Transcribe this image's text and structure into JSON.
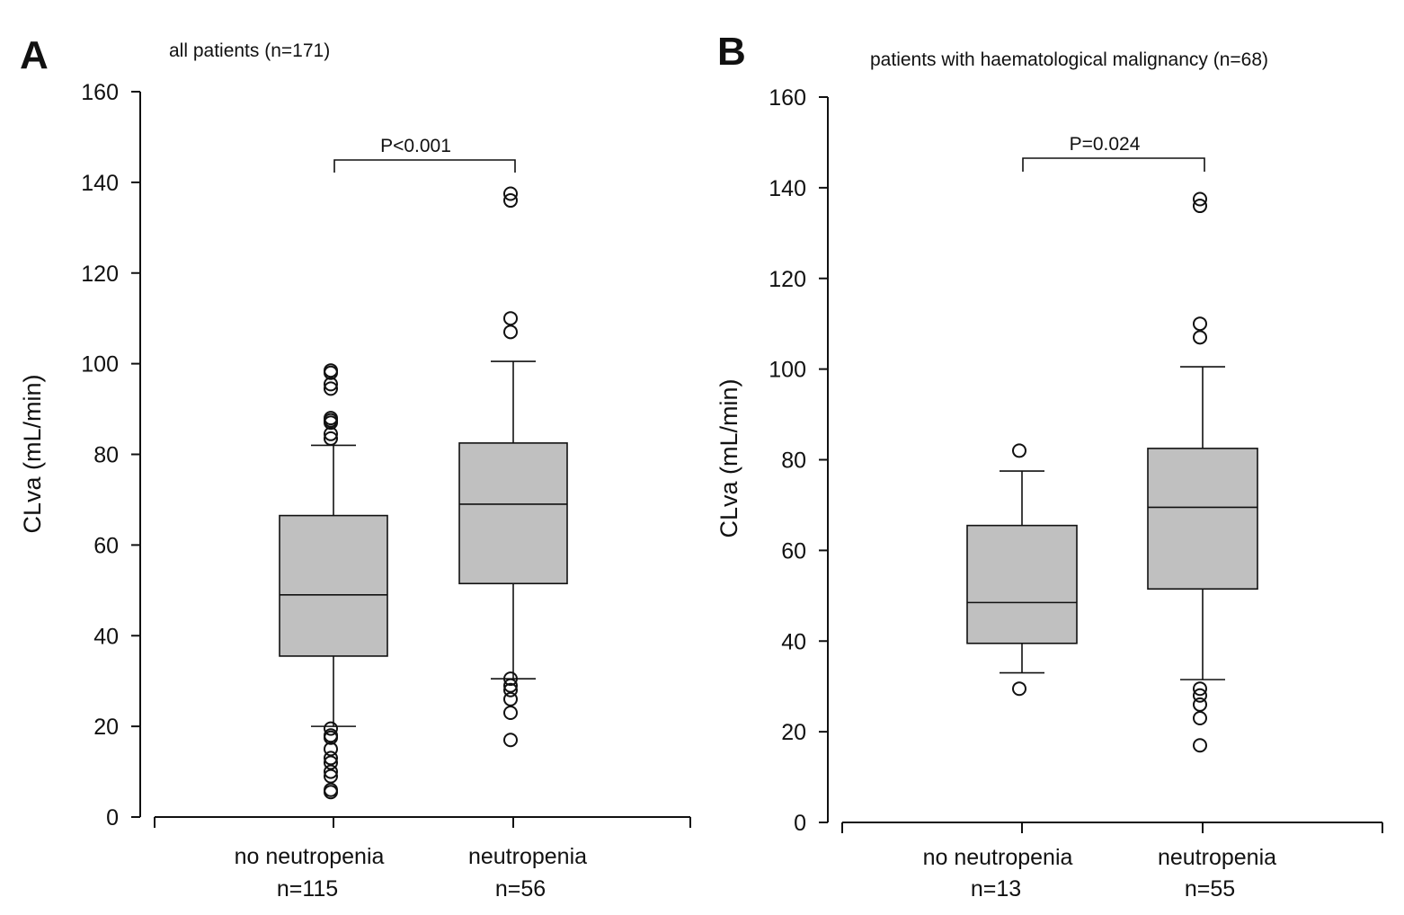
{
  "chart_data": [
    {
      "type": "box",
      "panel": "A",
      "title": "all patients (n=171)",
      "ylabel": "CLva (mL/min)",
      "xlabel": "",
      "ylim": [
        0,
        160
      ],
      "yticks": [
        0,
        20,
        40,
        60,
        80,
        100,
        120,
        140,
        160
      ],
      "grid": false,
      "comparison": {
        "label": "P<0.001",
        "between": [
          0,
          1
        ]
      },
      "groups": [
        {
          "name": "no neutropenia",
          "n_label": "n=115",
          "whisker_low": 20,
          "q1": 35.5,
          "median": 49,
          "q3": 66.5,
          "whisker_high": 82,
          "outliers": [
            98.5,
            98,
            95.5,
            94.5,
            88,
            87.5,
            87,
            84.5,
            83.5,
            19.5,
            18,
            17.5,
            15,
            13,
            12,
            10,
            9,
            6,
            5.5
          ]
        },
        {
          "name": "neutropenia",
          "n_label": "n=56",
          "whisker_low": 30.5,
          "q1": 51.5,
          "median": 69,
          "q3": 82.5,
          "whisker_high": 100.5,
          "outliers": [
            137.5,
            136,
            110,
            107,
            30.5,
            29,
            28,
            26,
            23,
            17
          ]
        }
      ]
    },
    {
      "type": "box",
      "panel": "B",
      "title": "patients with haematological malignancy (n=68)",
      "ylabel": "CLva (mL/min)",
      "xlabel": "",
      "ylim": [
        0,
        160
      ],
      "yticks": [
        0,
        20,
        40,
        60,
        80,
        100,
        120,
        140,
        160
      ],
      "grid": false,
      "comparison": {
        "label": "P=0.024",
        "between": [
          0,
          1
        ]
      },
      "groups": [
        {
          "name": "no neutropenia",
          "n_label": "n=13",
          "whisker_low": 33,
          "q1": 39.5,
          "median": 48.5,
          "q3": 65.5,
          "whisker_high": 77.5,
          "outliers": [
            82,
            29.5
          ]
        },
        {
          "name": "neutropenia",
          "n_label": "n=55",
          "whisker_low": 31.5,
          "q1": 51.5,
          "median": 69.5,
          "q3": 82.5,
          "whisker_high": 100.5,
          "outliers": [
            137.5,
            136,
            110,
            107,
            29.5,
            28,
            26,
            23,
            17
          ]
        }
      ]
    }
  ]
}
